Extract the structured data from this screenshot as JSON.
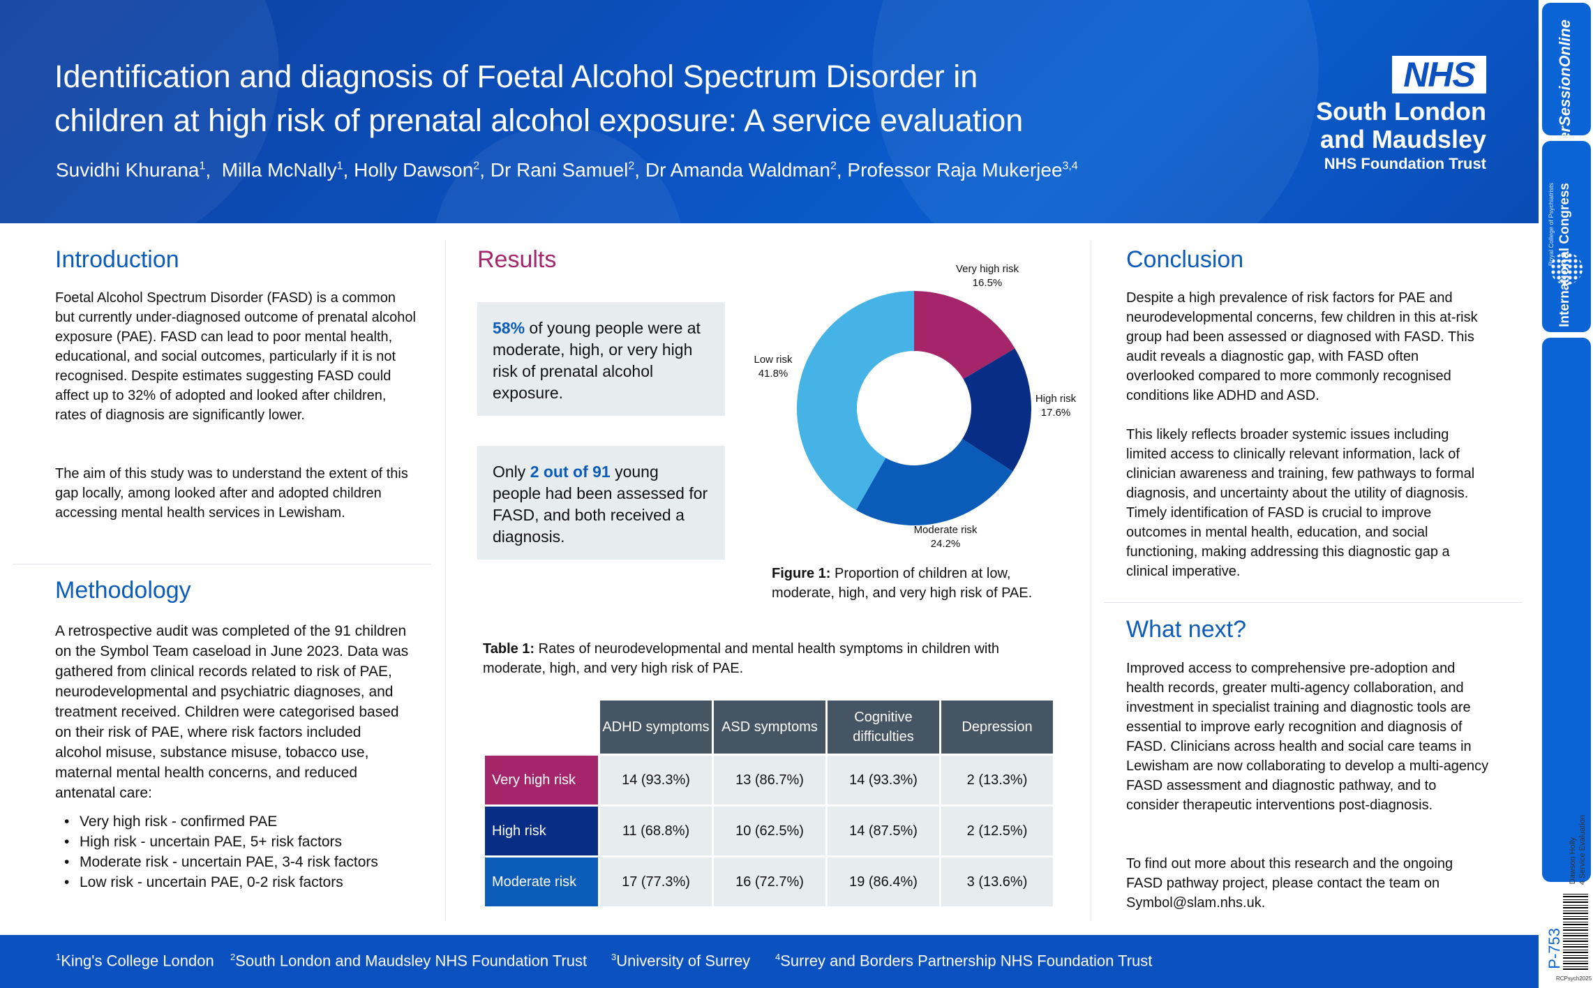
{
  "header": {
    "title_line1": "Identification and diagnosis of Foetal Alcohol Spectrum Disorder in",
    "title_line2": "children at high risk of prenatal alcohol exposure: A service evaluation",
    "authors": [
      {
        "name": "Suvidhi Khurana",
        "sup": "1"
      },
      {
        "name": "Milla McNally",
        "sup": "1"
      },
      {
        "name": "Holly Dawson",
        "sup": "2"
      },
      {
        "name": "Dr Rani Samuel",
        "sup": "2"
      },
      {
        "name": "Dr Amanda Waldman",
        "sup": "2"
      },
      {
        "name": "Professor Raja Mukerjee",
        "sup": "3,4"
      }
    ],
    "logo_text": "NHS",
    "trust_line1": "South London",
    "trust_line2": "and Maudsley",
    "trust_sub": "NHS Foundation Trust"
  },
  "sidebar": {
    "pso": "PosterSessionOnline",
    "congress": "International Congress",
    "rc_label": "Royal College of Psychiatrists",
    "category": "4 Service Evaluation",
    "presenter": "Dawson Holly",
    "poster_id": "P-753",
    "event_code": "RCPsych2025"
  },
  "introduction": {
    "heading": "Introduction",
    "para1": "Foetal Alcohol Spectrum Disorder (FASD) is a common but currently under-diagnosed outcome of prenatal alcohol exposure (PAE). FASD can lead to poor mental health, educational, and social outcomes, particularly if it is not recognised. Despite estimates suggesting FASD could affect up to 32% of adopted and looked after children, rates of diagnosis are significantly lower.",
    "para2": "The aim of this study was to understand the extent of this gap locally, among looked after and adopted children accessing mental health services in Lewisham."
  },
  "methodology": {
    "heading": "Methodology",
    "para": "A retrospective audit was completed of the 91 children on the Symbol Team caseload in June 2023. Data was gathered from clinical records related to risk of PAE, neurodevelopmental and psychiatric diagnoses, and treatment received. Children were categorised based on their risk of PAE, where risk factors included alcohol misuse, substance misuse, tobacco use, maternal mental health concerns, and reduced antenatal care:",
    "list": [
      "Very high risk - confirmed PAE",
      "High risk - uncertain PAE, 5+ risk factors",
      "Moderate risk - uncertain PAE, 3-4 risk factors",
      "Low risk - uncertain PAE, 0-2 risk factors"
    ]
  },
  "results": {
    "heading": "Results",
    "box1_highlight": "58%",
    "box1_text": " of young people were at moderate, high, or very high risk of prenatal alcohol exposure.",
    "box2_pre": "Only ",
    "box2_highlight": "2 out of 91",
    "box2_text": " young people had been assessed for FASD, and both received a diagnosis.",
    "figure_caption_label": "Figure 1:",
    "figure_caption_text": " Proportion of children at low, moderate, high, and very high risk of PAE.",
    "table_caption_label": "Table 1:",
    "table_caption_text": " Rates of neurodevelopmental and mental health symptoms in children with moderate, high, and very high risk of PAE."
  },
  "chart_data": {
    "type": "pie",
    "title": "",
    "slices": [
      {
        "label": "Very high risk",
        "value": 16.5,
        "display": "16.5%",
        "color": "#a5256b"
      },
      {
        "label": "High risk",
        "value": 17.6,
        "display": "17.6%",
        "color": "#082d86"
      },
      {
        "label": "Moderate risk",
        "value": 24.2,
        "display": "24.2%",
        "color": "#0b5cb8"
      },
      {
        "label": "Low risk",
        "value": 41.8,
        "display": "41.8%",
        "color": "#45b3e6"
      }
    ]
  },
  "table": {
    "columns": [
      "ADHD symptoms",
      "ASD symptoms",
      "Cognitive difficulties",
      "Depression"
    ],
    "rows": [
      {
        "label": "Very high risk",
        "cells": [
          "14 (93.3%)",
          "13 (86.7%)",
          "14 (93.3%)",
          "2 (13.3%)"
        ]
      },
      {
        "label": "High risk",
        "cells": [
          "11 (68.8%)",
          "10 (62.5%)",
          "14 (87.5%)",
          "2 (12.5%)"
        ]
      },
      {
        "label": "Moderate risk",
        "cells": [
          "17 (77.3%)",
          "16 (72.7%)",
          "19 (86.4%)",
          "3 (13.6%)"
        ]
      }
    ]
  },
  "conclusion": {
    "heading": "Conclusion",
    "para1": "Despite a high prevalence of risk factors for PAE and neurodevelopmental concerns, few children in this at-risk group had been assessed or diagnosed with FASD. This audit reveals a diagnostic gap, with FASD often overlooked compared to more commonly recognised conditions like ADHD and ASD.",
    "para2": "This likely reflects broader systemic issues including limited access to clinically relevant information, lack of clinician awareness and training, few pathways to formal diagnosis, and uncertainty about the utility of diagnosis. Timely identification of FASD is crucial to improve outcomes in mental health, education, and social functioning, making addressing this diagnostic gap a clinical imperative."
  },
  "what_next": {
    "heading": "What next?",
    "para1": "Improved access to comprehensive pre-adoption and health records, greater multi-agency collaboration, and investment in specialist training and diagnostic tools are essential to improve early recognition and diagnosis of FASD. Clinicians across health and social care teams in Lewisham are now collaborating to develop a multi-agency FASD assessment and diagnostic pathway, and to consider therapeutic interventions post-diagnosis.",
    "para2": "To find out more about this research and the ongoing FASD pathway project, please contact the team on Symbol@slam.nhs.uk."
  },
  "footer": {
    "affiliations": [
      {
        "sup": "1",
        "name": "King's College London"
      },
      {
        "sup": "2",
        "name": "South London and Maudsley NHS Foundation Trust"
      },
      {
        "sup": "3",
        "name": "University of Surrey"
      },
      {
        "sup": "4",
        "name": "Surrey and Borders Partnership NHS Foundation Trust"
      }
    ]
  }
}
